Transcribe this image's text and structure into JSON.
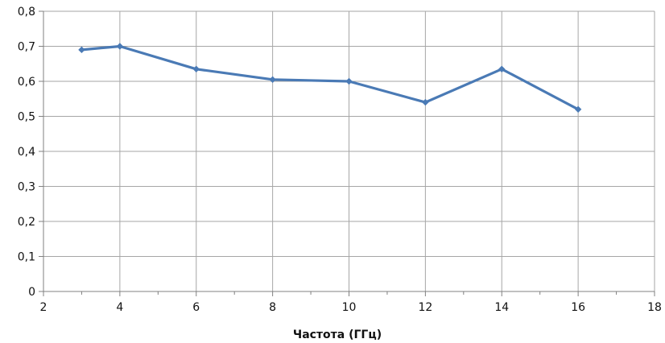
{
  "chart_data": {
    "type": "line",
    "title": "",
    "xlabel": "Частота (ГГц)",
    "ylabel": "",
    "xlim": [
      2,
      18
    ],
    "ylim": [
      0,
      0.8
    ],
    "x_ticks": [
      2,
      4,
      6,
      8,
      10,
      12,
      14,
      16,
      18
    ],
    "x_tick_labels": [
      "2",
      "4",
      "6",
      "8",
      "10",
      "12",
      "14",
      "16",
      "18"
    ],
    "y_ticks": [
      0,
      0.1,
      0.2,
      0.3,
      0.4,
      0.5,
      0.6,
      0.7,
      0.8
    ],
    "y_tick_labels": [
      "0",
      "0,1",
      "0,2",
      "0,3",
      "0,4",
      "0,5",
      "0,6",
      "0,7",
      "0,8"
    ],
    "grid": true,
    "legend": "none",
    "series": [
      {
        "x": [
          3,
          4,
          6,
          8,
          10,
          12,
          14,
          16
        ],
        "values": [
          0.69,
          0.7,
          0.635,
          0.605,
          0.6,
          0.54,
          0.635,
          0.52
        ]
      }
    ],
    "colors": {
      "line": "#4a7ab5",
      "grid": "#a6a6a6",
      "axis": "#808080",
      "text": "#111111"
    }
  }
}
